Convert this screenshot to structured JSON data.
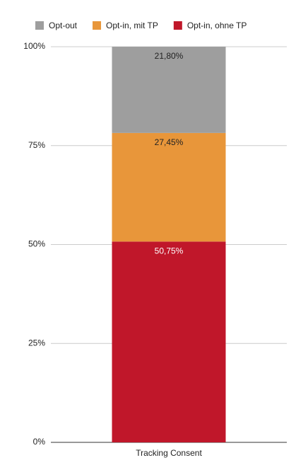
{
  "chart_data": {
    "type": "stacked_bar",
    "categories": [
      "Tracking Consent"
    ],
    "series": [
      {
        "name": "Opt-out",
        "color": "#9e9e9e",
        "values": [
          21.8
        ],
        "value_labels": [
          "21,80%"
        ]
      },
      {
        "name": "Opt-in, mit TP",
        "color": "#e8963a",
        "values": [
          27.45
        ],
        "value_labels": [
          "27,45%"
        ]
      },
      {
        "name": "Opt-in, ohne TP",
        "color": "#c0172a",
        "values": [
          50.75
        ],
        "value_labels": [
          "50,75%"
        ]
      }
    ],
    "ylim": [
      0,
      100
    ],
    "yticks": [
      {
        "value": 0,
        "label": "0%"
      },
      {
        "value": 25,
        "label": "25%"
      },
      {
        "value": 50,
        "label": "50%"
      },
      {
        "value": 75,
        "label": "75%"
      },
      {
        "value": 100,
        "label": "100%"
      }
    ],
    "grid": true,
    "legend": "top"
  }
}
